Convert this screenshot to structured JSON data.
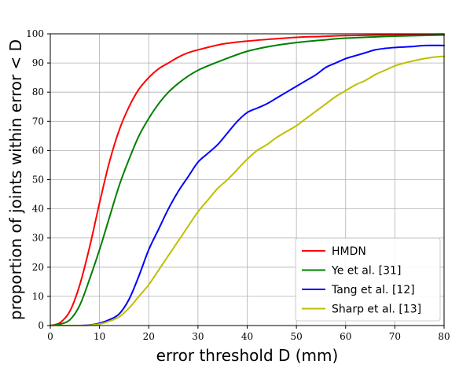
{
  "chart_data": {
    "type": "line",
    "xlabel": "error threshold D (mm)",
    "ylabel": "proportion of joints within error < D",
    "xlim": [
      0,
      80
    ],
    "ylim": [
      0,
      100
    ],
    "xticks": [
      0,
      10,
      20,
      30,
      40,
      50,
      60,
      70,
      80
    ],
    "yticks": [
      0,
      10,
      20,
      30,
      40,
      50,
      60,
      70,
      80,
      90,
      100
    ],
    "grid": true,
    "legend_position": "bottom-right",
    "series": [
      {
        "name": "HMDN",
        "color": "#ff0000",
        "x": [
          0,
          2,
          4,
          6,
          8,
          10,
          12,
          14,
          16,
          18,
          20,
          22,
          24,
          26,
          28,
          30,
          35,
          40,
          45,
          50,
          55,
          60,
          70,
          80
        ],
        "values": [
          0,
          1,
          5,
          14,
          27,
          42,
          56,
          67,
          75,
          81,
          85,
          88,
          90,
          92,
          93.5,
          94.5,
          96.5,
          97.5,
          98.2,
          98.8,
          99.1,
          99.4,
          99.7,
          99.9
        ]
      },
      {
        "name": "Ye et al. [31]",
        "color": "#008000",
        "x": [
          0,
          2,
          4,
          6,
          8,
          10,
          12,
          14,
          16,
          18,
          20,
          22,
          24,
          26,
          28,
          30,
          32,
          35,
          40,
          45,
          50,
          55,
          60,
          70,
          80
        ],
        "values": [
          0,
          0.5,
          2,
          7,
          16,
          26,
          37,
          48,
          57,
          65,
          71,
          76,
          80,
          83,
          85.5,
          87.5,
          89,
          91,
          94,
          95.8,
          97,
          97.8,
          98.5,
          99.2,
          99.6
        ]
      },
      {
        "name": "Tang et al. [12]",
        "color": "#0000ff",
        "x": [
          0,
          6,
          8,
          10,
          12,
          14,
          16,
          18,
          20,
          22,
          24,
          26,
          28,
          30,
          32,
          34,
          36,
          38,
          40,
          42,
          44,
          46,
          48,
          50,
          52,
          54,
          56,
          58,
          60,
          62,
          64,
          66,
          68,
          70,
          72,
          74,
          76,
          80
        ],
        "values": [
          0,
          0,
          0.2,
          0.8,
          2,
          4,
          9,
          17,
          26,
          33,
          40,
          46,
          51,
          56,
          59,
          62,
          66,
          70,
          73,
          74.5,
          76,
          78,
          80,
          82,
          84,
          86,
          88.5,
          90,
          91.5,
          92.5,
          93.5,
          94.5,
          95,
          95.3,
          95.5,
          95.7,
          96,
          96
        ]
      },
      {
        "name": "Sharp et al. [13]",
        "color": "#bfbf00",
        "x": [
          0,
          6,
          8,
          10,
          12,
          14,
          16,
          18,
          20,
          22,
          24,
          26,
          28,
          30,
          32,
          34,
          36,
          38,
          40,
          42,
          44,
          46,
          48,
          50,
          52,
          54,
          56,
          58,
          60,
          62,
          64,
          66,
          68,
          70,
          72,
          74,
          76,
          78,
          80
        ],
        "values": [
          0,
          0,
          0.1,
          0.5,
          1.5,
          3,
          6,
          10,
          14,
          19,
          24,
          29,
          34,
          39,
          43,
          47,
          50,
          53.5,
          57,
          60,
          62,
          64.5,
          66.5,
          68.5,
          71,
          73.5,
          76,
          78.5,
          80.5,
          82.5,
          84,
          86,
          87.5,
          89,
          90,
          90.8,
          91.5,
          92,
          92.3
        ]
      }
    ]
  }
}
